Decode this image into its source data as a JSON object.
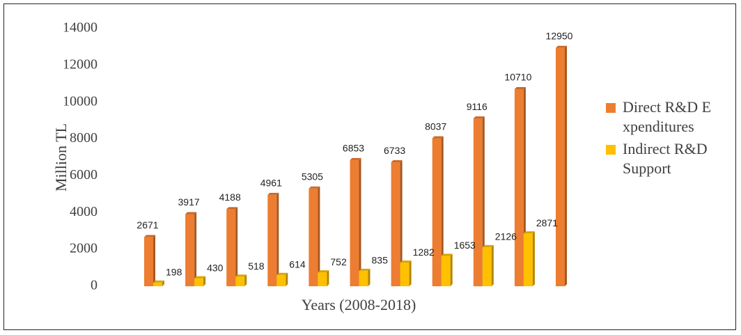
{
  "chart_data": {
    "type": "bar",
    "x_label": "Years (2008-2018)",
    "y_label": "Million TL",
    "categories": [
      null,
      null,
      null,
      null,
      null,
      null,
      null,
      null,
      null,
      null,
      null
    ],
    "series": [
      {
        "name": "Direct R&D Expenditures",
        "color": "#ed7d31",
        "values": [
          2671,
          3917,
          4188,
          4961,
          5305,
          6853,
          6733,
          8037,
          9116,
          10710,
          12950
        ]
      },
      {
        "name": "Indirect R&D Support",
        "color": "#ffc000",
        "values": [
          198,
          430,
          518,
          614,
          752,
          835,
          1282,
          1653,
          2126,
          2871,
          null
        ]
      }
    ],
    "ylim": [
      0,
      14000
    ],
    "yticks": [
      0,
      2000,
      4000,
      6000,
      8000,
      10000,
      12000,
      14000
    ],
    "grid": false,
    "legend": "right"
  }
}
